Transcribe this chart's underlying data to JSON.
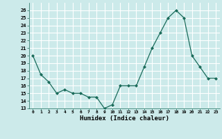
{
  "x": [
    0,
    1,
    2,
    3,
    4,
    5,
    6,
    7,
    8,
    9,
    10,
    11,
    12,
    13,
    14,
    15,
    16,
    17,
    18,
    19,
    20,
    21,
    22,
    23
  ],
  "y": [
    20,
    17.5,
    16.5,
    15,
    15.5,
    15,
    15,
    14.5,
    14.5,
    13,
    13.5,
    16,
    16,
    16,
    18.5,
    21,
    23,
    25,
    26,
    25,
    20,
    18.5,
    17,
    17
  ],
  "xlabel": "Humidex (Indice chaleur)",
  "xlim": [
    -0.5,
    23.5
  ],
  "ylim": [
    13,
    27
  ],
  "yticks": [
    13,
    14,
    15,
    16,
    17,
    18,
    19,
    20,
    21,
    22,
    23,
    24,
    25,
    26
  ],
  "xticks": [
    0,
    1,
    2,
    3,
    4,
    5,
    6,
    7,
    8,
    9,
    10,
    11,
    12,
    13,
    14,
    15,
    16,
    17,
    18,
    19,
    20,
    21,
    22,
    23
  ],
  "line_color": "#1a6b5a",
  "marker_color": "#1a6b5a",
  "bg_color": "#cceaea",
  "grid_color": "#ffffff"
}
